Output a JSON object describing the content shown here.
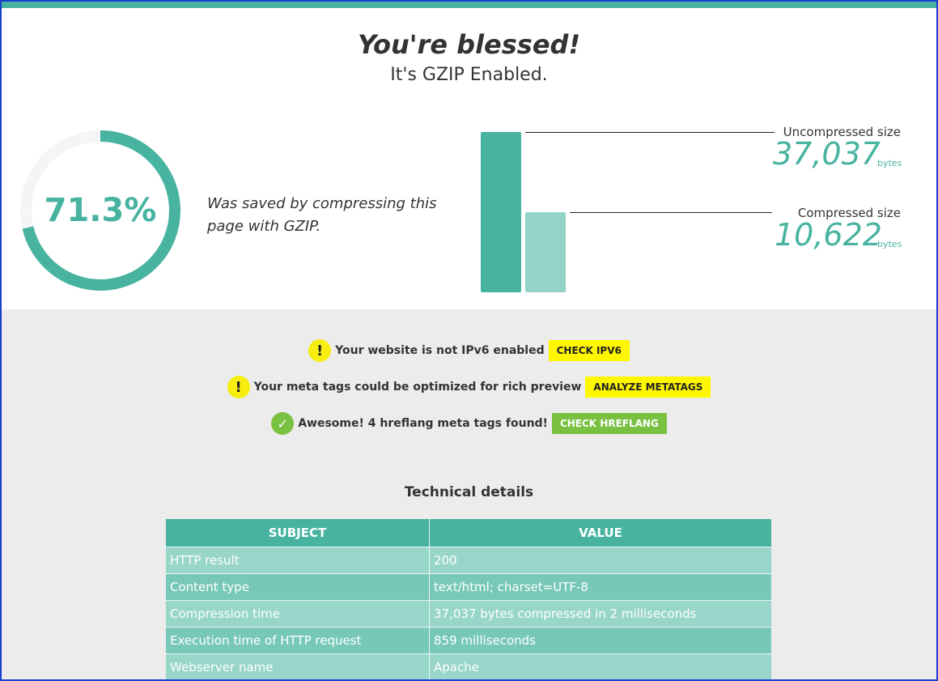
{
  "hero": {
    "headline": "You're blessed!",
    "subline": "It's GZIP Enabled.",
    "percent_saved": 71.3,
    "percent_label": "71.3%",
    "saved_text": "Was saved by compressing this page with GZIP.",
    "uncompressed_label": "Uncompressed size",
    "uncompressed_value": "37,037",
    "uncompressed_unit": "bytes",
    "compressed_label": "Compressed size",
    "compressed_value": "10,622",
    "compressed_unit": "bytes"
  },
  "notices": [
    {
      "icon": "exclamation-icon",
      "text": "Your website is not IPv6 enabled",
      "button": "CHECK IPV6"
    },
    {
      "icon": "exclamation-icon",
      "text": "Your meta tags could be optimized for rich preview",
      "button": "ANALYZE METATAGS"
    },
    {
      "icon": "check-icon",
      "text": "Awesome! 4 hreflang meta tags found!",
      "button": "CHECK HREFLANG"
    }
  ],
  "technical": {
    "title": "Technical details",
    "headers": [
      "SUBJECT",
      "VALUE"
    ],
    "rows": [
      [
        "HTTP result",
        "200"
      ],
      [
        "Content type",
        "text/html; charset=UTF-8"
      ],
      [
        "Compression time",
        "37,037 bytes compressed in 2 milliseconds"
      ],
      [
        "Execution time of HTTP request",
        "859 milliseconds"
      ],
      [
        "Webserver name",
        "Apache"
      ]
    ]
  },
  "colors": {
    "accent": "#47b3a0",
    "accent_light": "#93d4c7",
    "warning": "#f7ee10",
    "success": "#7ac142"
  }
}
